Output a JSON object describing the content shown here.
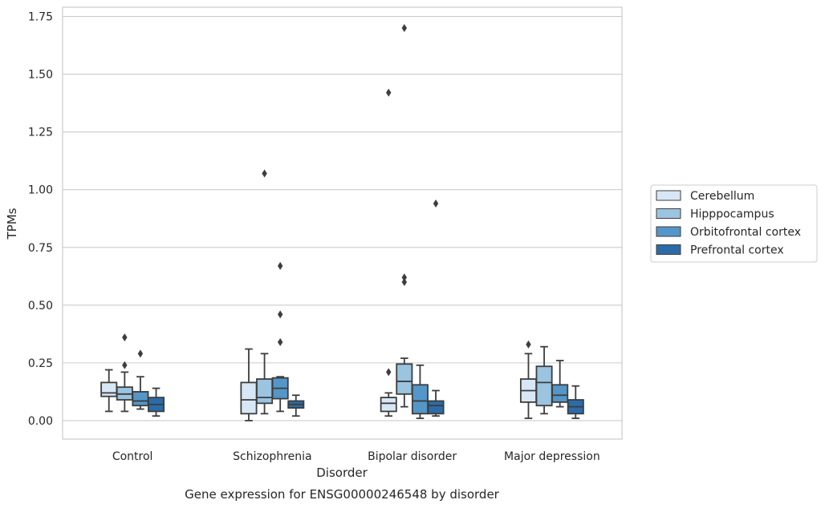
{
  "chart_data": {
    "type": "box",
    "title": "",
    "caption": "Gene expression for ENSG00000246548 by disorder",
    "xlabel": "Disorder",
    "ylabel": "TPMs",
    "ylim": [
      -0.08,
      1.79
    ],
    "yticks": [
      0.0,
      0.25,
      0.5,
      0.75,
      1.0,
      1.25,
      1.5,
      1.75
    ],
    "ytick_labels": [
      "0.00",
      "0.25",
      "0.50",
      "0.75",
      "1.00",
      "1.25",
      "1.50",
      "1.75"
    ],
    "grid": "horizontal",
    "legend_position": "right",
    "categories": [
      "Control",
      "Schizophrenia",
      "Bipolar disorder",
      "Major depression"
    ],
    "series": [
      {
        "name": "Cerebellum",
        "color": "#d8e7f5",
        "boxes": [
          {
            "whisker_low": 0.04,
            "q1": 0.105,
            "median": 0.12,
            "q3": 0.165,
            "whisker_high": 0.22,
            "outliers": []
          },
          {
            "whisker_low": 0.0,
            "q1": 0.03,
            "median": 0.09,
            "q3": 0.165,
            "whisker_high": 0.31,
            "outliers": []
          },
          {
            "whisker_low": 0.02,
            "q1": 0.04,
            "median": 0.075,
            "q3": 0.1,
            "whisker_high": 0.12,
            "outliers": [
              0.21,
              1.42
            ]
          },
          {
            "whisker_low": 0.01,
            "q1": 0.08,
            "median": 0.13,
            "q3": 0.18,
            "whisker_high": 0.29,
            "outliers": [
              0.33
            ]
          }
        ]
      },
      {
        "name": "Hipppocampus",
        "color": "#9ac4e0",
        "boxes": [
          {
            "whisker_low": 0.04,
            "q1": 0.09,
            "median": 0.115,
            "q3": 0.145,
            "whisker_high": 0.21,
            "outliers": [
              0.24,
              0.36
            ]
          },
          {
            "whisker_low": 0.03,
            "q1": 0.075,
            "median": 0.1,
            "q3": 0.18,
            "whisker_high": 0.29,
            "outliers": [
              1.07
            ]
          },
          {
            "whisker_low": 0.06,
            "q1": 0.115,
            "median": 0.17,
            "q3": 0.245,
            "whisker_high": 0.27,
            "outliers": [
              0.6,
              0.62,
              1.7
            ]
          },
          {
            "whisker_low": 0.03,
            "q1": 0.065,
            "median": 0.165,
            "q3": 0.235,
            "whisker_high": 0.32,
            "outliers": []
          }
        ]
      },
      {
        "name": "Orbitofrontal cortex",
        "color": "#5496c8",
        "boxes": [
          {
            "whisker_low": 0.05,
            "q1": 0.065,
            "median": 0.085,
            "q3": 0.125,
            "whisker_high": 0.19,
            "outliers": [
              0.29
            ]
          },
          {
            "whisker_low": 0.04,
            "q1": 0.095,
            "median": 0.14,
            "q3": 0.185,
            "whisker_high": 0.19,
            "outliers": [
              0.34,
              0.46,
              0.67
            ]
          },
          {
            "whisker_low": 0.01,
            "q1": 0.03,
            "median": 0.085,
            "q3": 0.155,
            "whisker_high": 0.24,
            "outliers": []
          },
          {
            "whisker_low": 0.06,
            "q1": 0.08,
            "median": 0.11,
            "q3": 0.155,
            "whisker_high": 0.26,
            "outliers": []
          }
        ]
      },
      {
        "name": "Prefrontal cortex",
        "color": "#2b6ca8",
        "boxes": [
          {
            "whisker_low": 0.02,
            "q1": 0.04,
            "median": 0.07,
            "q3": 0.1,
            "whisker_high": 0.14,
            "outliers": []
          },
          {
            "whisker_low": 0.02,
            "q1": 0.055,
            "median": 0.07,
            "q3": 0.085,
            "whisker_high": 0.11,
            "outliers": []
          },
          {
            "whisker_low": 0.02,
            "q1": 0.03,
            "median": 0.065,
            "q3": 0.085,
            "whisker_high": 0.13,
            "outliers": [
              0.94
            ]
          },
          {
            "whisker_low": 0.01,
            "q1": 0.03,
            "median": 0.06,
            "q3": 0.09,
            "whisker_high": 0.15,
            "outliers": []
          }
        ]
      }
    ]
  }
}
